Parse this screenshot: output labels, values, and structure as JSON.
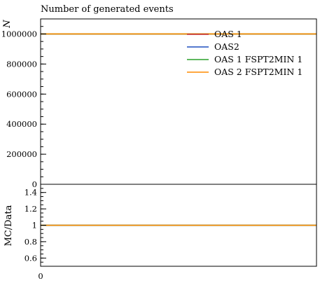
{
  "chart_data": [
    {
      "type": "line",
      "title": "Number of generated events",
      "ylabel": "N",
      "xlabel": "",
      "x": [
        0,
        1
      ],
      "ylim": [
        0,
        1100000
      ],
      "yticks": [
        "0",
        "200000",
        "400000",
        "600000",
        "800000",
        "1000000"
      ],
      "legend_position": "top-right",
      "series": [
        {
          "name": "OAS 1",
          "color": "#c0272d",
          "values": [
            1000000,
            1000000
          ]
        },
        {
          "name": "OAS2",
          "color": "#1f4fbf",
          "values": [
            1000000,
            1000000
          ]
        },
        {
          "name": "OAS 1 FSPT2MIN 1",
          "color": "#2ca02c",
          "values": [
            1000000,
            1000000
          ]
        },
        {
          "name": "OAS 2 FSPT2MIN 1",
          "color": "#ff8c00",
          "values": [
            1000000,
            1000000
          ]
        }
      ]
    },
    {
      "type": "line",
      "ylabel": "MC/Data",
      "xlabel": "",
      "x": [
        0,
        1
      ],
      "xticks": [
        "0"
      ],
      "ylim": [
        0.5,
        1.5
      ],
      "yticks": [
        "0.6",
        "0.8",
        "1",
        "1.2",
        "1.4"
      ],
      "series": [
        {
          "color": "#c0272d",
          "values": [
            1,
            1
          ]
        },
        {
          "color": "#1f4fbf",
          "values": [
            1,
            1
          ]
        },
        {
          "color": "#2ca02c",
          "values": [
            1,
            1
          ]
        },
        {
          "color": "#ff8c00",
          "values": [
            1,
            1
          ]
        }
      ]
    }
  ]
}
